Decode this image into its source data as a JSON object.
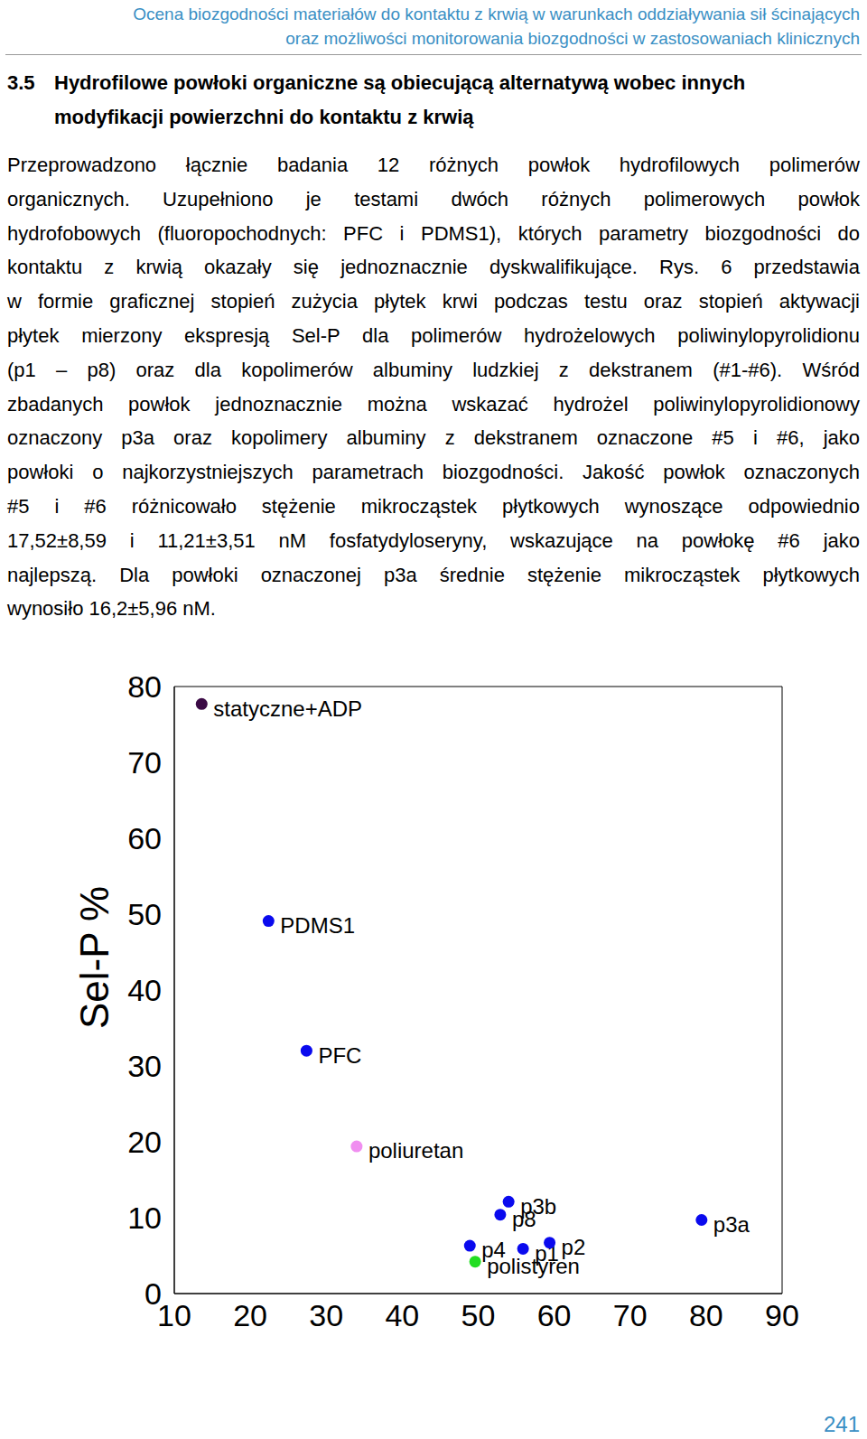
{
  "header": {
    "lines": [
      "Ocena biozgodności materiałów do kontaktu z krwią w warunkach oddziaływania sił ścinających",
      "oraz możliwości monitorowania biozgodności w zastosowaniach klinicznych"
    ]
  },
  "section": {
    "number": "3.5",
    "title": [
      "Hydrofilowe powłoki organiczne są obiecującą alternatywą wobec innych",
      "modyfikacji powierzchni do kontaktu z krwią"
    ]
  },
  "paragraph": {
    "lines": [
      "Przeprowadzono łącznie badania 12 różnych powłok hydrofilowych polimerów",
      "organicznych. Uzupełniono je testami dwóch różnych polimerowych powłok",
      "hydrofobowych (fluoropochodnych: PFC i PDMS1), których parametry biozgodności do",
      "kontaktu z krwią okazały się jednoznacznie dyskwalifikujące. Rys. 6 przedstawia",
      "w formie graficznej stopień zużycia płytek krwi podczas testu oraz stopień aktywacji",
      "płytek mierzony ekspresją Sel-P dla polimerów hydrożelowych poliwinylopyrolidionu",
      "(p1 – p8) oraz dla kopolimerów albuminy ludzkiej z dekstranem (#1-#6). Wśród",
      "zbadanych powłok jednoznacznie można wskazać hydrożel poliwinylopyrolidionowy",
      "oznaczony p3a oraz kopolimery albuminy z dekstranem oznaczone #5 i #6, jako",
      "powłoki o najkorzystniejszych parametrach biozgodności. Jakość powłok oznaczonych",
      "#5 i #6 różnicowało stężenie mikrocząstek płytkowych wynoszące odpowiednio",
      "17,52±8,59 i 11,21±3,51 nM fosfatydyloseryny, wskazujące na powłokę #6 jako",
      "najlepszą. Dla powłoki oznaczonej p3a średnie stężenie mikrocząstek płytkowych",
      "wynosiło 16,2±5,96 nM."
    ]
  },
  "chart_data": {
    "type": "scatter",
    "y_label": "Sel-P %",
    "labels": [
      "statyczne+ADP",
      "PDMS1",
      "PFC",
      "poliuretan",
      "p3b",
      "p8",
      "p4",
      "polistyren",
      "p1",
      "p2",
      "p3a"
    ],
    "x": [
      13.6,
      22.4,
      27.4,
      34.0,
      54.0,
      52.9,
      48.9,
      49.6,
      55.9,
      59.4,
      79.4
    ],
    "values": [
      77.7,
      49.1,
      32.0,
      19.4,
      12.1,
      10.4,
      6.3,
      4.2,
      5.9,
      6.7,
      9.7
    ],
    "colors": [
      "#3b0a45",
      "#0a0aee",
      "#0a0aee",
      "#f08ef0",
      "#0a0aee",
      "#0a0aee",
      "#0a0aee",
      "#22dd22",
      "#0a0aee",
      "#0a0aee",
      "#0a0aee"
    ],
    "marker": "circle",
    "grid": false,
    "xlim": [
      10,
      90
    ],
    "ylim": [
      0,
      80
    ],
    "xticks": [
      10,
      20,
      30,
      40,
      50,
      60,
      70,
      80,
      90
    ],
    "yticks": [
      0,
      10,
      20,
      30,
      40,
      50,
      60,
      70,
      80
    ]
  },
  "page_number": 241
}
